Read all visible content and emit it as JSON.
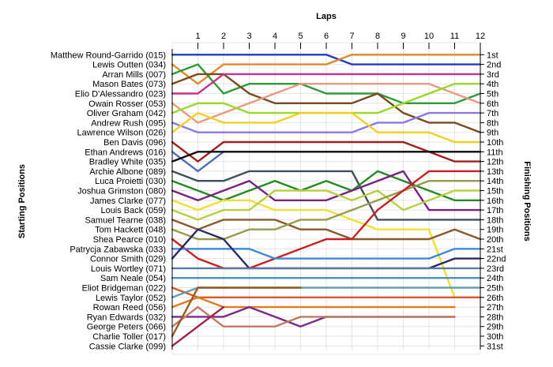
{
  "chart_data": {
    "type": "line",
    "title": "Laps",
    "xlabel": "Laps",
    "ylabel_left": "Starting Positions",
    "ylabel_right": "Finishing Positions",
    "laps": [
      1,
      2,
      3,
      4,
      5,
      6,
      7,
      8,
      9,
      10,
      11,
      12
    ],
    "finishing_labels": [
      "1st",
      "2nd",
      "3rd",
      "4th",
      "5th",
      "6th",
      "7th",
      "8th",
      "9th",
      "10th",
      "11th",
      "12th",
      "13th",
      "14th",
      "15th",
      "16th",
      "17th",
      "18th",
      "19th",
      "20th",
      "21st",
      "22nd",
      "23rd",
      "24th",
      "25th",
      "26th",
      "27th",
      "28th",
      "29th",
      "30th",
      "31st"
    ],
    "grid": true,
    "series": [
      {
        "name": "Matthew Round-Garrido (015)",
        "color": "#1f3fbf",
        "positions": [
          1,
          1,
          1,
          1,
          1,
          1,
          1,
          2,
          2,
          2,
          2,
          2,
          2
        ]
      },
      {
        "name": "Lewis Outten (034)",
        "color": "#e08a28",
        "positions": [
          2,
          4,
          2,
          2,
          2,
          2,
          2,
          1,
          1,
          1,
          1,
          1,
          1
        ]
      },
      {
        "name": "Arran Mills (007)",
        "color": "#2e9a3a",
        "positions": [
          3,
          2,
          5,
          4,
          4,
          4,
          5,
          5,
          5,
          6,
          6,
          6,
          5
        ]
      },
      {
        "name": "Mason Bates (073)",
        "color": "#7a4a1e",
        "positions": [
          4,
          3,
          3,
          5,
          6,
          6,
          6,
          6,
          5,
          7,
          8,
          8,
          9
        ]
      },
      {
        "name": "Elio D'Alessandro (023)",
        "color": "#c93090",
        "positions": [
          5,
          5,
          3,
          3,
          3,
          3,
          3,
          3,
          3,
          3,
          3,
          3,
          3
        ]
      },
      {
        "name": "Owain Rosser (053)",
        "color": "#e89a80",
        "positions": [
          6,
          8,
          7,
          6,
          5,
          4,
          4,
          4,
          4,
          4,
          4,
          5,
          6
        ]
      },
      {
        "name": "Oliver Graham (042)",
        "color": "#9ad82a",
        "positions": [
          7,
          6,
          6,
          7,
          7,
          7,
          7,
          7,
          7,
          6,
          5,
          4,
          4
        ]
      },
      {
        "name": "Andrew Rush (095)",
        "color": "#8a7ae0",
        "positions": [
          8,
          9,
          9,
          9,
          9,
          9,
          9,
          9,
          8,
          8,
          7,
          7,
          7
        ]
      },
      {
        "name": "Lawrence Wilson (026)",
        "color": "#f2d020",
        "positions": [
          9,
          7,
          8,
          8,
          8,
          7,
          7,
          7,
          9,
          9,
          9,
          10,
          10
        ]
      },
      {
        "name": "Ben Davis (096)",
        "color": "#a02020",
        "positions": [
          10,
          12,
          10,
          10,
          10,
          10,
          10,
          10,
          10,
          10,
          11,
          12,
          12
        ]
      },
      {
        "name": "Ethan Andrews (016)",
        "color": "#4a6eb8",
        "positions": [
          11,
          13,
          11,
          11,
          11,
          11,
          11,
          11,
          11,
          11,
          11,
          11,
          11
        ]
      },
      {
        "name": "Bradley White (035)",
        "color": "#111111",
        "positions": [
          12,
          11,
          11,
          11,
          11,
          11,
          11,
          11,
          11,
          11,
          11,
          11,
          11
        ]
      },
      {
        "name": "Archie Albone (089)",
        "color": "#40505a",
        "positions": [
          13,
          14,
          14,
          13,
          13,
          13,
          13,
          13,
          18,
          18,
          18,
          18,
          18
        ]
      },
      {
        "name": "Luca Proietti (030)",
        "color": "#228b22",
        "positions": [
          14,
          15,
          16,
          15,
          14,
          15,
          14,
          15,
          13,
          14,
          15,
          16,
          16
        ]
      },
      {
        "name": "Joshua Grimston (080)",
        "color": "#7a2080",
        "positions": [
          15,
          16,
          15,
          14,
          16,
          16,
          16,
          15,
          14,
          13,
          17,
          17,
          17
        ]
      },
      {
        "name": "James Clarke (077)",
        "color": "#f0e030",
        "positions": [
          16,
          17,
          16,
          16,
          17,
          17,
          17,
          18,
          19,
          19,
          19,
          26,
          26
        ]
      },
      {
        "name": "Louis Back (059)",
        "color": "#b8d040",
        "positions": [
          17,
          18,
          17,
          17,
          15,
          15,
          15,
          16,
          15,
          17,
          16,
          15,
          15
        ]
      },
      {
        "name": "Samuel Tearne (038)",
        "color": "#8a5a2a",
        "positions": [
          18,
          19,
          18,
          18,
          18,
          19,
          19,
          20,
          20,
          20,
          20,
          19,
          20
        ]
      },
      {
        "name": "Tom Hackett (048)",
        "color": "#9a9a4a",
        "positions": [
          19,
          20,
          20,
          19,
          19,
          18,
          18,
          17,
          16,
          15,
          14,
          14,
          14
        ]
      },
      {
        "name": "Shea Pearce (010)",
        "color": "#c82020",
        "positions": [
          20,
          22,
          23,
          23,
          22,
          21,
          20,
          20,
          17,
          15,
          13,
          13,
          13
        ]
      },
      {
        "name": "Patrycja Zabawska (033)",
        "color": "#3a8ad8",
        "positions": [
          21,
          21,
          21,
          21,
          22,
          22,
          22,
          22,
          22,
          22,
          22,
          21,
          21
        ]
      },
      {
        "name": "Connor Smith (029)",
        "color": "#2a2a6a",
        "positions": [
          22,
          19,
          20,
          23,
          23,
          23,
          23,
          23,
          23,
          23,
          23,
          22,
          22
        ]
      },
      {
        "name": "Louis Wortley (071)",
        "color": "#5a7aa0",
        "positions": [
          23,
          23,
          23,
          23,
          23,
          23,
          23,
          23,
          23,
          23,
          23,
          23,
          23
        ]
      },
      {
        "name": "Sam Neale (054)",
        "color": "#4a90d0",
        "positions": [
          24,
          24,
          24,
          24,
          24,
          24,
          24,
          24,
          24,
          24,
          24,
          24,
          24
        ]
      },
      {
        "name": "Eliot Bridgeman (022)",
        "color": "#d85a2a",
        "positions": [
          25,
          26,
          26,
          26,
          26,
          26,
          26,
          26,
          26,
          26,
          26,
          26,
          26
        ]
      },
      {
        "name": "Lewis Taylor (052)",
        "color": "#60a0b0",
        "positions": [
          26,
          25,
          25,
          25,
          25,
          25,
          25,
          25,
          25,
          25,
          25,
          25,
          25
        ]
      },
      {
        "name": "Rowan Reed (056)",
        "color": "#e07a20",
        "positions": [
          27,
          26,
          27,
          27,
          27,
          27,
          27,
          27,
          27,
          27,
          27,
          27
        ]
      },
      {
        "name": "Ryan Edwards (032)",
        "color": "#7a2a8a",
        "positions": [
          28,
          28,
          28,
          27,
          28,
          29,
          28,
          28,
          28,
          28,
          28,
          28
        ]
      },
      {
        "name": "George Peters (066)",
        "color": "#c07a60",
        "positions": [
          29,
          27,
          29,
          29,
          29,
          28,
          28,
          28,
          28,
          28,
          28,
          28
        ]
      },
      {
        "name": "Charlie Toller (017)",
        "color": "#9a5a20",
        "positions": [
          30,
          25,
          25,
          25,
          25,
          25
        ]
      },
      {
        "name": "Cassie Clarke (099)",
        "color": "#a02050",
        "positions": [
          31,
          29,
          27
        ]
      }
    ]
  }
}
